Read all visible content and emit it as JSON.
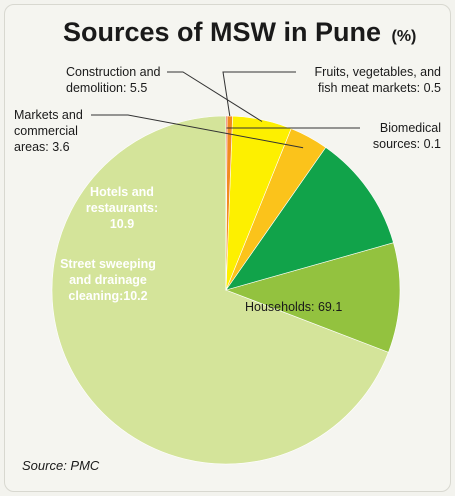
{
  "chart_data": {
    "type": "pie",
    "title": "Sources of MSW in Pune",
    "title_unit": "(%)",
    "source": "Source: PMC",
    "slices": [
      {
        "key": "households",
        "name_lines": [
          "Households: 69.1"
        ],
        "value": 69.1,
        "color": "#d4e49a"
      },
      {
        "key": "street",
        "name_lines": [
          "Street sweeping",
          "and drainage",
          "cleaning:10.2"
        ],
        "value": 10.2,
        "color": "#93c23f"
      },
      {
        "key": "hotels",
        "name_lines": [
          "Hotels and",
          "restaurants:",
          "10.9"
        ],
        "value": 10.9,
        "color": "#11a34a"
      },
      {
        "key": "markets",
        "name_lines": [
          "Markets and",
          "commercial",
          "areas: 3.6"
        ],
        "value": 3.6,
        "color": "#fbc31b"
      },
      {
        "key": "construction",
        "name_lines": [
          "Construction and",
          "demolition: 5.5"
        ],
        "value": 5.5,
        "color": "#fdf000"
      },
      {
        "key": "fruits",
        "name_lines": [
          "Fruits, vegetables, and",
          "fish meat markets: 0.5"
        ],
        "value": 0.5,
        "color": "#f28a21"
      },
      {
        "key": "biomedical",
        "name_lines": [
          "Biomedical",
          "sources: 0.1"
        ],
        "value": 0.1,
        "color": "#e2231a"
      }
    ],
    "legend": "none",
    "start_angle_deg": 0,
    "direction": "counterclockwise"
  }
}
